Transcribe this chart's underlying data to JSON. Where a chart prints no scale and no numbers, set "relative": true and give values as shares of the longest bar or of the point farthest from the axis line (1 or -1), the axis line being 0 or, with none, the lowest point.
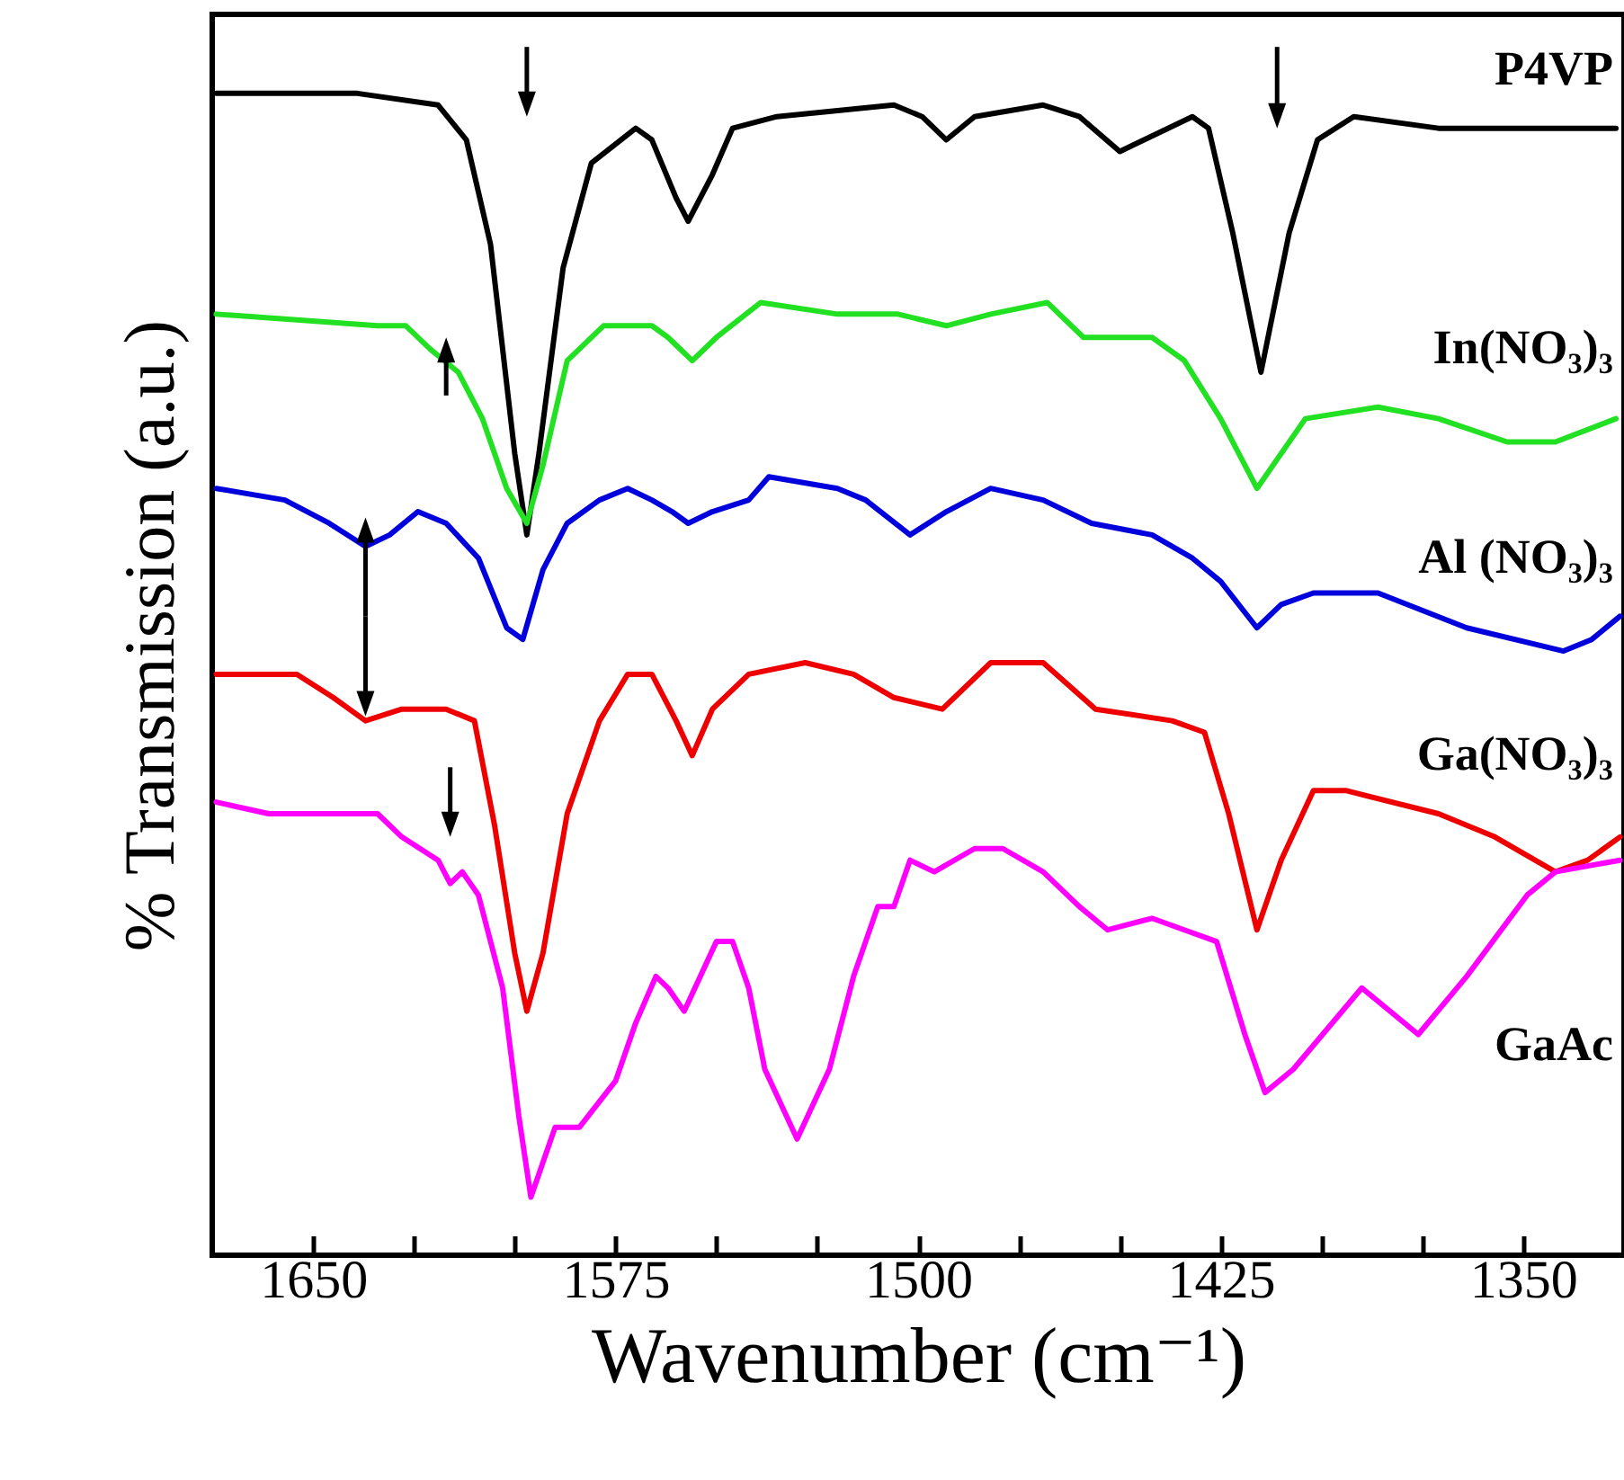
{
  "chart_data": {
    "type": "line",
    "xlabel": "Wavenumber (cm⁻¹)",
    "ylabel": "% Transmission (a.u.)",
    "relative": true,
    "line_style": "solid",
    "xlim": [
      1675,
      1325
    ],
    "xticks": [
      1650,
      {
        "value": 1625,
        "label": null
      },
      {
        "value": 1600,
        "label": null
      },
      1575,
      {
        "value": 1550,
        "label": null
      },
      {
        "value": 1525,
        "label": null
      },
      1500,
      {
        "value": 1475,
        "label": null
      },
      {
        "value": 1450,
        "label": null
      },
      1425,
      {
        "value": 1400,
        "label": null
      },
      {
        "value": 1375,
        "label": null
      },
      1350
    ],
    "series": [
      {
        "name": "P4VP",
        "color": "#000000",
        "x": [
          1674,
          1639,
          1619,
          1612,
          1606,
          1600,
          1597,
          1594,
          1588,
          1581,
          1570,
          1566,
          1560,
          1557,
          1551,
          1546,
          1535,
          1506,
          1499,
          1493,
          1486,
          1469,
          1460,
          1450,
          1432,
          1428,
          1422,
          1415,
          1408,
          1401,
          1392,
          1371,
          1327
        ],
        "values": [
          1.0,
          1.0,
          0.99,
          0.96,
          0.87,
          0.69,
          0.62,
          0.69,
          0.85,
          0.94,
          0.97,
          0.96,
          0.91,
          0.89,
          0.93,
          0.97,
          0.98,
          0.99,
          0.98,
          0.96,
          0.98,
          0.99,
          0.98,
          0.95,
          0.98,
          0.97,
          0.88,
          0.76,
          0.88,
          0.96,
          0.98,
          0.97,
          0.97
        ]
      },
      {
        "name": "In(NO₃)₃",
        "color": "#22e022",
        "x": [
          1674,
          1634,
          1627,
          1621,
          1614,
          1608,
          1602,
          1597,
          1593,
          1587,
          1578,
          1566,
          1562,
          1556,
          1550,
          1539,
          1520,
          1505,
          1493,
          1482,
          1468,
          1459,
          1442,
          1434,
          1425,
          1416,
          1410,
          1404,
          1386,
          1371,
          1354,
          1342,
          1327
        ],
        "values": [
          0.81,
          0.8,
          0.8,
          0.78,
          0.76,
          0.72,
          0.66,
          0.63,
          0.68,
          0.77,
          0.8,
          0.8,
          0.79,
          0.77,
          0.79,
          0.82,
          0.81,
          0.81,
          0.8,
          0.81,
          0.82,
          0.79,
          0.79,
          0.77,
          0.72,
          0.66,
          0.69,
          0.72,
          0.73,
          0.72,
          0.7,
          0.7,
          0.72
        ]
      },
      {
        "name": "Al (NO₃)₃",
        "color": "#0000dd",
        "x": [
          1674,
          1657,
          1646,
          1637,
          1631,
          1624,
          1617,
          1609,
          1602,
          1598,
          1593,
          1587,
          1579,
          1572,
          1566,
          1561,
          1557,
          1551,
          1542,
          1537,
          1520,
          1513,
          1502,
          1493,
          1482,
          1469,
          1457,
          1442,
          1432,
          1425,
          1416,
          1410,
          1402,
          1386,
          1364,
          1340,
          1333,
          1326
        ],
        "values": [
          0.66,
          0.65,
          0.63,
          0.61,
          0.62,
          0.64,
          0.63,
          0.6,
          0.54,
          0.53,
          0.59,
          0.63,
          0.65,
          0.66,
          0.65,
          0.64,
          0.63,
          0.64,
          0.65,
          0.67,
          0.66,
          0.65,
          0.62,
          0.64,
          0.66,
          0.65,
          0.63,
          0.62,
          0.6,
          0.58,
          0.54,
          0.56,
          0.57,
          0.57,
          0.54,
          0.52,
          0.53,
          0.55
        ]
      },
      {
        "name": "Ga(NO₃)₃",
        "color": "#ee0000",
        "x": [
          1674,
          1654,
          1645,
          1637,
          1628,
          1617,
          1610,
          1605,
          1600,
          1597,
          1593,
          1587,
          1579,
          1572,
          1566,
          1560,
          1556,
          1551,
          1542,
          1528,
          1516,
          1506,
          1494,
          1482,
          1469,
          1456,
          1437,
          1429,
          1423,
          1416,
          1410,
          1402,
          1394,
          1371,
          1357,
          1342,
          1334,
          1326
        ],
        "values": [
          0.5,
          0.5,
          0.48,
          0.46,
          0.47,
          0.47,
          0.46,
          0.37,
          0.26,
          0.21,
          0.26,
          0.38,
          0.46,
          0.5,
          0.5,
          0.46,
          0.43,
          0.47,
          0.5,
          0.51,
          0.5,
          0.48,
          0.47,
          0.51,
          0.51,
          0.47,
          0.46,
          0.45,
          0.38,
          0.28,
          0.34,
          0.4,
          0.4,
          0.38,
          0.36,
          0.33,
          0.34,
          0.36
        ]
      },
      {
        "name": "GaAc",
        "color": "#ff00ff",
        "x": [
          1674,
          1661,
          1634,
          1628,
          1619,
          1616,
          1613,
          1609,
          1603,
          1599,
          1596,
          1590,
          1584,
          1575,
          1570,
          1565,
          1562,
          1558,
          1550,
          1546,
          1542,
          1538,
          1530,
          1522,
          1516,
          1510,
          1506,
          1502,
          1496,
          1486,
          1479,
          1469,
          1460,
          1453,
          1442,
          1434,
          1426,
          1419,
          1414,
          1407,
          1390,
          1376,
          1364,
          1349,
          1342,
          1326
        ],
        "values": [
          0.39,
          0.38,
          0.38,
          0.36,
          0.34,
          0.32,
          0.33,
          0.31,
          0.23,
          0.12,
          0.05,
          0.11,
          0.11,
          0.15,
          0.2,
          0.24,
          0.23,
          0.21,
          0.27,
          0.27,
          0.23,
          0.16,
          0.1,
          0.16,
          0.24,
          0.3,
          0.3,
          0.34,
          0.33,
          0.35,
          0.35,
          0.33,
          0.3,
          0.28,
          0.29,
          0.28,
          0.27,
          0.19,
          0.14,
          0.16,
          0.23,
          0.19,
          0.24,
          0.31,
          0.33,
          0.34
        ]
      }
    ]
  }
}
